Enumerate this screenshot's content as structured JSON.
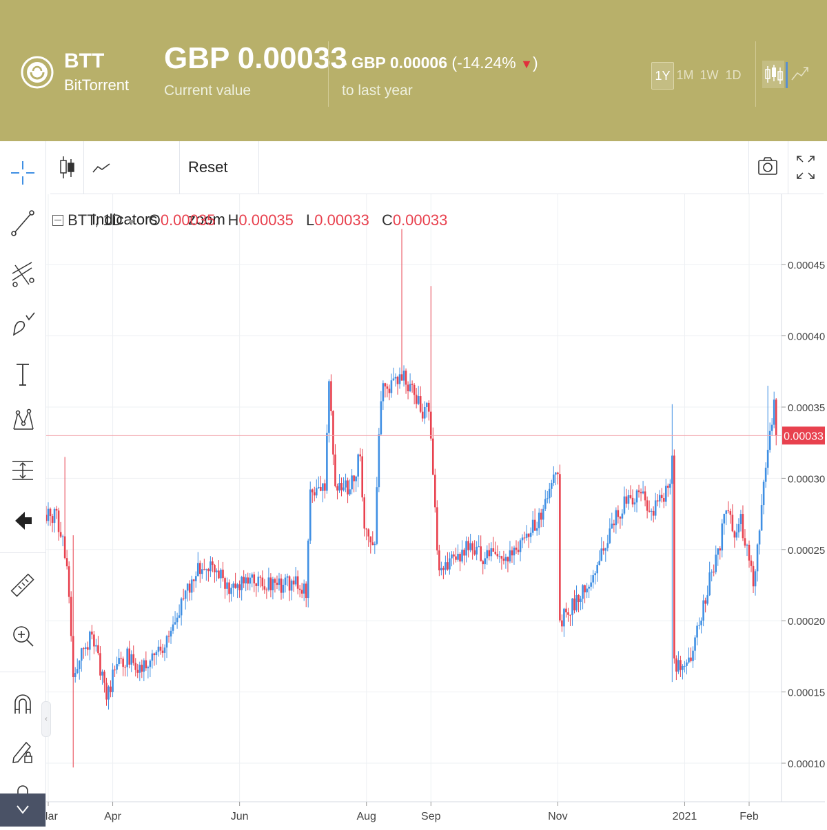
{
  "header": {
    "symbol": "BTT",
    "name": "BitTorrent",
    "price": "GBP 0.00033",
    "price_label": "Current value",
    "change_prefix": "- GBP 0.00006",
    "change_pct": "(-14.24%",
    "change_suffix": ")",
    "change_label": "to last year",
    "ranges": [
      "1Y",
      "1M",
      "1W",
      "1D"
    ],
    "active_range": "1Y",
    "accent_color": "#b8b06a"
  },
  "toolbar": {
    "indicators_label": "Indicators",
    "reset_zoom_label": "Reset zoom"
  },
  "left_tools": [
    "crosshair-icon",
    "trend-line-icon",
    "fib-icon",
    "brush-icon",
    "text-icon",
    "pattern-icon",
    "measure-icon",
    "back-arrow-icon",
    "ruler-icon",
    "zoom-in-icon",
    "magnet-icon",
    "lock-draw-icon",
    "lock-icon"
  ],
  "legend": {
    "symbol": "BTT, 1D",
    "o_label": "O",
    "o_value": "0.00035",
    "h_label": "H",
    "h_value": "0.00035",
    "l_label": "L",
    "l_value": "0.00033",
    "c_label": "C",
    "c_value": "0.00033"
  },
  "chart_data": {
    "type": "candlestick",
    "symbol": "BTT",
    "interval": "1D",
    "currency": "GBP",
    "y_ticks": [
      0.0001,
      0.00015,
      0.0002,
      0.00025,
      0.0003,
      0.00035,
      0.0004,
      0.00045
    ],
    "y_tick_labels": [
      "0.00010",
      "0.00015",
      "0.00020",
      "0.00025",
      "0.00030",
      "0.00035",
      "0.00040",
      "0.00045"
    ],
    "x_ticks": [
      {
        "date": "2020-03-01",
        "label": "Mar"
      },
      {
        "date": "2020-04-01",
        "label": "Apr"
      },
      {
        "date": "2020-06-01",
        "label": "Jun"
      },
      {
        "date": "2020-08-01",
        "label": "Aug"
      },
      {
        "date": "2020-09-01",
        "label": "Sep"
      },
      {
        "date": "2020-11-01",
        "label": "Nov"
      },
      {
        "date": "2021-01-01",
        "label": "2021"
      },
      {
        "date": "2021-02-01",
        "label": "Feb"
      }
    ],
    "current_price": 0.00033,
    "current_price_label": "0.00033",
    "up_color": "#3f8fe3",
    "down_color": "#e8414e",
    "grid": true,
    "close_path": [
      [
        "2020-02-25",
        0.00027
      ],
      [
        "2020-03-05",
        0.000275
      ],
      [
        "2020-03-10",
        0.00024
      ],
      [
        "2020-03-13",
        0.000155
      ],
      [
        "2020-03-17",
        0.000175
      ],
      [
        "2020-03-22",
        0.00019
      ],
      [
        "2020-03-26",
        0.000165
      ],
      [
        "2020-03-29",
        0.000145
      ],
      [
        "2020-04-02",
        0.000165
      ],
      [
        "2020-04-08",
        0.000175
      ],
      [
        "2020-04-13",
        0.000168
      ],
      [
        "2020-04-18",
        0.000172
      ],
      [
        "2020-04-25",
        0.00018
      ],
      [
        "2020-05-02",
        0.000205
      ],
      [
        "2020-05-08",
        0.000225
      ],
      [
        "2020-05-14",
        0.00024
      ],
      [
        "2020-05-22",
        0.000232
      ],
      [
        "2020-05-28",
        0.000222
      ],
      [
        "2020-06-05",
        0.00023
      ],
      [
        "2020-06-12",
        0.000228
      ],
      [
        "2020-06-20",
        0.000225
      ],
      [
        "2020-06-28",
        0.000226
      ],
      [
        "2020-07-03",
        0.00022
      ],
      [
        "2020-07-05",
        0.000293
      ],
      [
        "2020-07-12",
        0.000295
      ],
      [
        "2020-07-14",
        0.000368
      ],
      [
        "2020-07-17",
        0.000295
      ],
      [
        "2020-07-24",
        0.000292
      ],
      [
        "2020-07-27",
        0.000305
      ],
      [
        "2020-07-29",
        0.00032
      ],
      [
        "2020-07-31",
        0.000262
      ],
      [
        "2020-08-05",
        0.000258
      ],
      [
        "2020-08-08",
        0.00036
      ],
      [
        "2020-08-12",
        0.000365
      ],
      [
        "2020-08-16",
        0.000368
      ],
      [
        "2020-08-19",
        0.00037
      ],
      [
        "2020-08-24",
        0.00036
      ],
      [
        "2020-08-28",
        0.000345
      ],
      [
        "2020-08-31",
        0.000352
      ],
      [
        "2020-09-02",
        0.000305
      ],
      [
        "2020-09-05",
        0.00023
      ],
      [
        "2020-09-10",
        0.00024
      ],
      [
        "2020-09-16",
        0.000248
      ],
      [
        "2020-09-20",
        0.000255
      ],
      [
        "2020-09-26",
        0.000243
      ],
      [
        "2020-10-02",
        0.000247
      ],
      [
        "2020-10-08",
        0.000243
      ],
      [
        "2020-10-14",
        0.000255
      ],
      [
        "2020-10-20",
        0.000265
      ],
      [
        "2020-10-26",
        0.00028
      ],
      [
        "2020-10-29",
        0.0003
      ],
      [
        "2020-11-01",
        0.0003
      ],
      [
        "2020-11-02",
        0.0002
      ],
      [
        "2020-11-08",
        0.00021
      ],
      [
        "2020-11-15",
        0.000225
      ],
      [
        "2020-11-22",
        0.000245
      ],
      [
        "2020-11-28",
        0.00027
      ],
      [
        "2020-12-04",
        0.000285
      ],
      [
        "2020-12-10",
        0.00029
      ],
      [
        "2020-12-16",
        0.000278
      ],
      [
        "2020-12-20",
        0.000285
      ],
      [
        "2020-12-24",
        0.00029
      ],
      [
        "2020-12-26",
        0.00031
      ],
      [
        "2020-12-27",
        0.000168
      ],
      [
        "2021-01-03",
        0.00017
      ],
      [
        "2021-01-08",
        0.0002
      ],
      [
        "2021-01-14",
        0.000235
      ],
      [
        "2021-01-18",
        0.000255
      ],
      [
        "2021-01-21",
        0.00028
      ],
      [
        "2021-01-25",
        0.00026
      ],
      [
        "2021-01-28",
        0.00027
      ],
      [
        "2021-02-01",
        0.000245
      ],
      [
        "2021-02-03",
        0.00022
      ],
      [
        "2021-02-05",
        0.00025
      ],
      [
        "2021-02-07",
        0.00028
      ],
      [
        "2021-02-09",
        0.00031
      ],
      [
        "2021-02-11",
        0.00033
      ],
      [
        "2021-02-13",
        0.00035
      ],
      [
        "2021-02-14",
        0.00033
      ]
    ],
    "notable_wicks": [
      {
        "date": "2020-03-13",
        "low": 9.7e-05,
        "high": 0.00026
      },
      {
        "date": "2020-03-09",
        "high": 0.000315
      },
      {
        "date": "2020-08-18",
        "high": 0.000475
      },
      {
        "date": "2020-09-01",
        "high": 0.000435
      },
      {
        "date": "2020-12-26",
        "high": 0.000352,
        "low": 0.000157
      },
      {
        "date": "2021-02-10",
        "high": 0.000365
      }
    ]
  }
}
